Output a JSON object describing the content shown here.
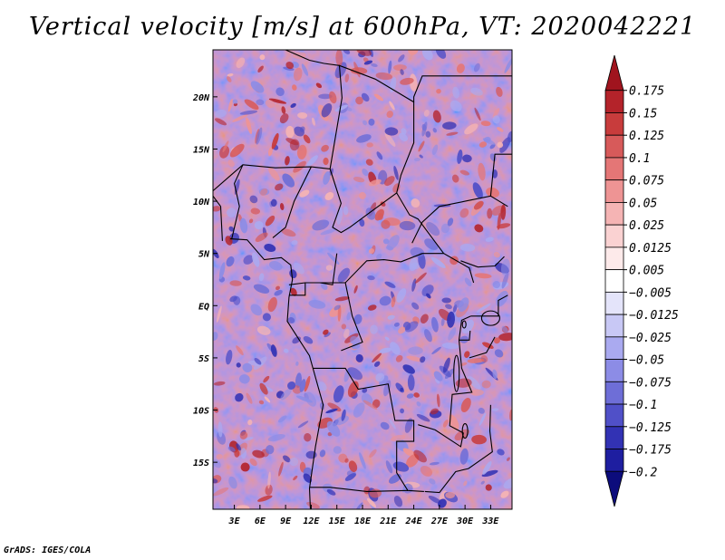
{
  "title": "Vertical velocity [m/s] at 600hPa, VT: 2020042221",
  "footer": "GrADS: IGES/COLA",
  "map": {
    "lat_ticks": [
      "20N",
      "15N",
      "10N",
      "5N",
      "EQ",
      "5S",
      "10S",
      "15S"
    ],
    "lat_values": [
      20,
      15,
      10,
      5,
      0,
      -5,
      -10,
      -15
    ],
    "lon_ticks": [
      "3E",
      "6E",
      "9E",
      "12E",
      "15E",
      "18E",
      "21E",
      "24E",
      "27E",
      "30E",
      "33E"
    ],
    "lon_values": [
      3,
      6,
      9,
      12,
      15,
      18,
      21,
      24,
      27,
      30,
      33
    ],
    "lon_range": [
      0.5,
      35.5
    ],
    "lat_range": [
      -19.5,
      24.5
    ],
    "field": "vertical velocity"
  },
  "colorbar": {
    "levels": [
      "0.175",
      "0.15",
      "0.125",
      "0.1",
      "0.075",
      "0.05",
      "0.025",
      "0.0125",
      "0.005",
      "−0.005",
      "−0.0125",
      "−0.025",
      "−0.05",
      "−0.075",
      "−0.1",
      "−0.125",
      "−0.175",
      "−0.2"
    ],
    "colors": [
      "#a0141e",
      "#b4232a",
      "#c83c3c",
      "#d75a5a",
      "#e47676",
      "#ee9494",
      "#f5b4b4",
      "#fad2d2",
      "#fdeaea",
      "#ffffff",
      "#e4e4fa",
      "#c8c8f5",
      "#aaaaf0",
      "#8c8ce6",
      "#6e6ed7",
      "#5050c8",
      "#3232b4",
      "#1e1ea0",
      "#0c0c7c"
    ]
  }
}
